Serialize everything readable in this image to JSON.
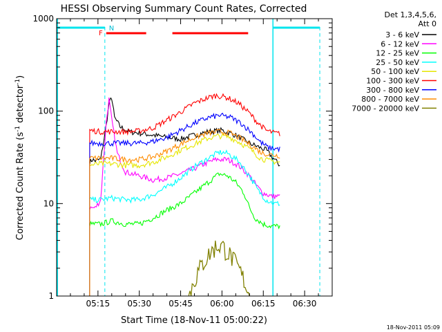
{
  "chart_data": {
    "type": "line",
    "title": "HESSI Observing Summary Count Rates, Corrected",
    "xlabel": "Start Time (18-Nov-11 05:00:22)",
    "ylabel_main": "Corrected Count Rate (s",
    "ylabel_sup1": "-1",
    "ylabel_mid": " detector",
    "ylabel_sup2": "-1",
    "ylabel_end": ")",
    "yscale": "log",
    "ylim": [
      1,
      1000
    ],
    "xlim_minutes": [
      0,
      100
    ],
    "x_ticks": [
      {
        "minute": 15,
        "label": "05:15"
      },
      {
        "minute": 30,
        "label": "05:30"
      },
      {
        "minute": 45,
        "label": "05:45"
      },
      {
        "minute": 60,
        "label": "06:00"
      },
      {
        "minute": 75,
        "label": "06:15"
      },
      {
        "minute": 90,
        "label": "06:30"
      }
    ],
    "y_ticks": [
      {
        "value": 1,
        "label": "1"
      },
      {
        "value": 10,
        "label": "10"
      },
      {
        "value": 100,
        "label": "100"
      },
      {
        "value": 1000,
        "label": "1000"
      }
    ],
    "legend_title_1": "Det 1,3,4,5,6,",
    "legend_title_2": "Att 0",
    "legend_placement": "right",
    "series": [
      {
        "name": "3 - 6 keV",
        "color": "#000000",
        "points": [
          [
            12,
            28
          ],
          [
            13,
            30
          ],
          [
            14,
            29
          ],
          [
            16,
            30
          ],
          [
            18,
            70
          ],
          [
            19,
            120
          ],
          [
            20,
            140
          ],
          [
            21,
            85
          ],
          [
            23,
            68
          ],
          [
            26,
            60
          ],
          [
            30,
            58
          ],
          [
            35,
            55
          ],
          [
            40,
            52
          ],
          [
            45,
            50
          ],
          [
            50,
            55
          ],
          [
            55,
            60
          ],
          [
            60,
            62
          ],
          [
            65,
            55
          ],
          [
            70,
            45
          ],
          [
            74,
            40
          ],
          [
            76,
            38
          ],
          [
            79,
            30
          ],
          [
            81,
            26
          ]
        ]
      },
      {
        "name": "6 - 12 keV",
        "color": "#ff00ff",
        "points": [
          [
            12,
            9
          ],
          [
            14,
            9
          ],
          [
            16,
            11
          ],
          [
            18,
            75
          ],
          [
            19,
            135
          ],
          [
            20,
            80
          ],
          [
            22,
            35
          ],
          [
            25,
            22
          ],
          [
            30,
            20
          ],
          [
            35,
            18
          ],
          [
            40,
            19
          ],
          [
            45,
            21
          ],
          [
            50,
            24
          ],
          [
            55,
            28
          ],
          [
            58,
            30
          ],
          [
            62,
            30
          ],
          [
            66,
            26
          ],
          [
            70,
            20
          ],
          [
            73,
            15
          ],
          [
            75,
            13
          ],
          [
            78,
            12
          ],
          [
            81,
            12
          ]
        ]
      },
      {
        "name": "12 - 25 keV",
        "color": "#00ff00",
        "points": [
          [
            12,
            6
          ],
          [
            16,
            6
          ],
          [
            20,
            6.5
          ],
          [
            25,
            6
          ],
          [
            30,
            6
          ],
          [
            35,
            7
          ],
          [
            40,
            8.5
          ],
          [
            45,
            10
          ],
          [
            50,
            13
          ],
          [
            55,
            17
          ],
          [
            59,
            21
          ],
          [
            62,
            20
          ],
          [
            65,
            17
          ],
          [
            68,
            13
          ],
          [
            70,
            9
          ],
          [
            72,
            7
          ],
          [
            75,
            6
          ],
          [
            78,
            5.7
          ],
          [
            81,
            5.7
          ]
        ]
      },
      {
        "name": "25 - 50 keV",
        "color": "#00ffff",
        "points": [
          [
            12,
            11
          ],
          [
            16,
            11
          ],
          [
            20,
            11.5
          ],
          [
            25,
            11
          ],
          [
            30,
            11
          ],
          [
            35,
            12.5
          ],
          [
            40,
            15
          ],
          [
            45,
            19
          ],
          [
            50,
            25
          ],
          [
            55,
            31
          ],
          [
            59,
            36
          ],
          [
            62,
            35
          ],
          [
            66,
            29
          ],
          [
            70,
            20
          ],
          [
            73,
            14
          ],
          [
            76,
            11
          ],
          [
            79,
            10
          ],
          [
            81,
            10
          ]
        ]
      },
      {
        "name": "50 - 100 keV",
        "color": "#e6e600",
        "points": [
          [
            12,
            26
          ],
          [
            16,
            27
          ],
          [
            20,
            27
          ],
          [
            25,
            26
          ],
          [
            30,
            26
          ],
          [
            35,
            28
          ],
          [
            40,
            32
          ],
          [
            45,
            38
          ],
          [
            50,
            44
          ],
          [
            55,
            51
          ],
          [
            59,
            54
          ],
          [
            63,
            52
          ],
          [
            67,
            45
          ],
          [
            71,
            37
          ],
          [
            74,
            31
          ],
          [
            77,
            29
          ],
          [
            81,
            28
          ]
        ]
      },
      {
        "name": "100 - 300 keV",
        "color": "#ff0000",
        "points": [
          [
            12,
            62
          ],
          [
            16,
            60
          ],
          [
            20,
            60
          ],
          [
            25,
            60
          ],
          [
            30,
            61
          ],
          [
            35,
            66
          ],
          [
            40,
            80
          ],
          [
            45,
            98
          ],
          [
            50,
            122
          ],
          [
            55,
            140
          ],
          [
            58,
            148
          ],
          [
            62,
            140
          ],
          [
            66,
            122
          ],
          [
            70,
            95
          ],
          [
            73,
            75
          ],
          [
            76,
            62
          ],
          [
            79,
            58
          ],
          [
            81,
            57
          ]
        ]
      },
      {
        "name": "300 - 800 keV",
        "color": "#0000ff",
        "points": [
          [
            12,
            45
          ],
          [
            16,
            45
          ],
          [
            20,
            45
          ],
          [
            25,
            45
          ],
          [
            30,
            45
          ],
          [
            35,
            47
          ],
          [
            40,
            52
          ],
          [
            45,
            62
          ],
          [
            50,
            74
          ],
          [
            55,
            85
          ],
          [
            59,
            90
          ],
          [
            63,
            86
          ],
          [
            67,
            74
          ],
          [
            71,
            58
          ],
          [
            74,
            46
          ],
          [
            77,
            40
          ],
          [
            81,
            39
          ]
        ]
      },
      {
        "name": "800 - 7000 keV",
        "color": "#ff8c00",
        "points": [
          [
            12,
            31
          ],
          [
            16,
            31
          ],
          [
            20,
            31
          ],
          [
            25,
            30
          ],
          [
            30,
            30
          ],
          [
            35,
            32
          ],
          [
            40,
            37
          ],
          [
            45,
            44
          ],
          [
            50,
            52
          ],
          [
            55,
            58
          ],
          [
            59,
            60
          ],
          [
            63,
            58
          ],
          [
            67,
            50
          ],
          [
            71,
            42
          ],
          [
            74,
            36
          ],
          [
            77,
            34
          ],
          [
            81,
            33
          ]
        ]
      },
      {
        "name": "7000 - 20000 keV",
        "color": "#808000",
        "points": [
          [
            48,
            1
          ],
          [
            50,
            1.5
          ],
          [
            52,
            2
          ],
          [
            54,
            2.5
          ],
          [
            56,
            3
          ],
          [
            58,
            3.5
          ],
          [
            60,
            3.5
          ],
          [
            62,
            3
          ],
          [
            64,
            2.5
          ],
          [
            66,
            2
          ],
          [
            68,
            1.5
          ],
          [
            70,
            1
          ]
        ]
      }
    ],
    "flag_labels": {
      "F": "F",
      "N": "N"
    },
    "timestamp": "18-Nov-2011 05:09"
  }
}
